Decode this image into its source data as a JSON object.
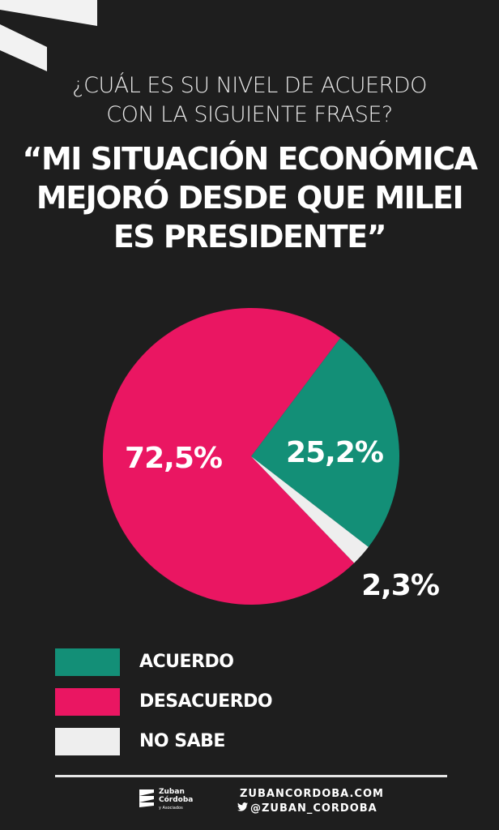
{
  "header": {
    "question_lines": [
      "¿CUÁL ES SU NIVEL DE ACUERDO",
      "CON LA SIGUIENTE FRASE?"
    ],
    "quote_lines": [
      "“MI SITUACIÓN ECONÓMICA",
      "MEJORÓ DESDE QUE  MILEI",
      "ES PRESIDENTE”"
    ]
  },
  "colors": {
    "acuerdo": "#138f77",
    "desacuerdo": "#ea1662",
    "no_sabe": "#eeeeee",
    "background": "#1e1e1e"
  },
  "chart_data": {
    "type": "pie",
    "slices": [
      {
        "name": "ACUERDO",
        "value": 25.2,
        "label": "25,2%"
      },
      {
        "name": "DESACUERDO",
        "value": 72.5,
        "label": "72,5%"
      },
      {
        "name": "NO SABE",
        "value": 2.3,
        "label": "2,3%"
      }
    ],
    "legend": [
      "ACUERDO",
      "DESACUERDO",
      "NO SABE"
    ],
    "legend_position": "bottom"
  },
  "footer": {
    "logo_name": "Zuban",
    "logo_name2": "Córdoba",
    "logo_sub": "y Asociados",
    "website": "ZUBANCORDOBA.COM",
    "twitter": "@ZUBAN_CORDOBA",
    "twitter_icon": "twitter-bird-icon"
  }
}
